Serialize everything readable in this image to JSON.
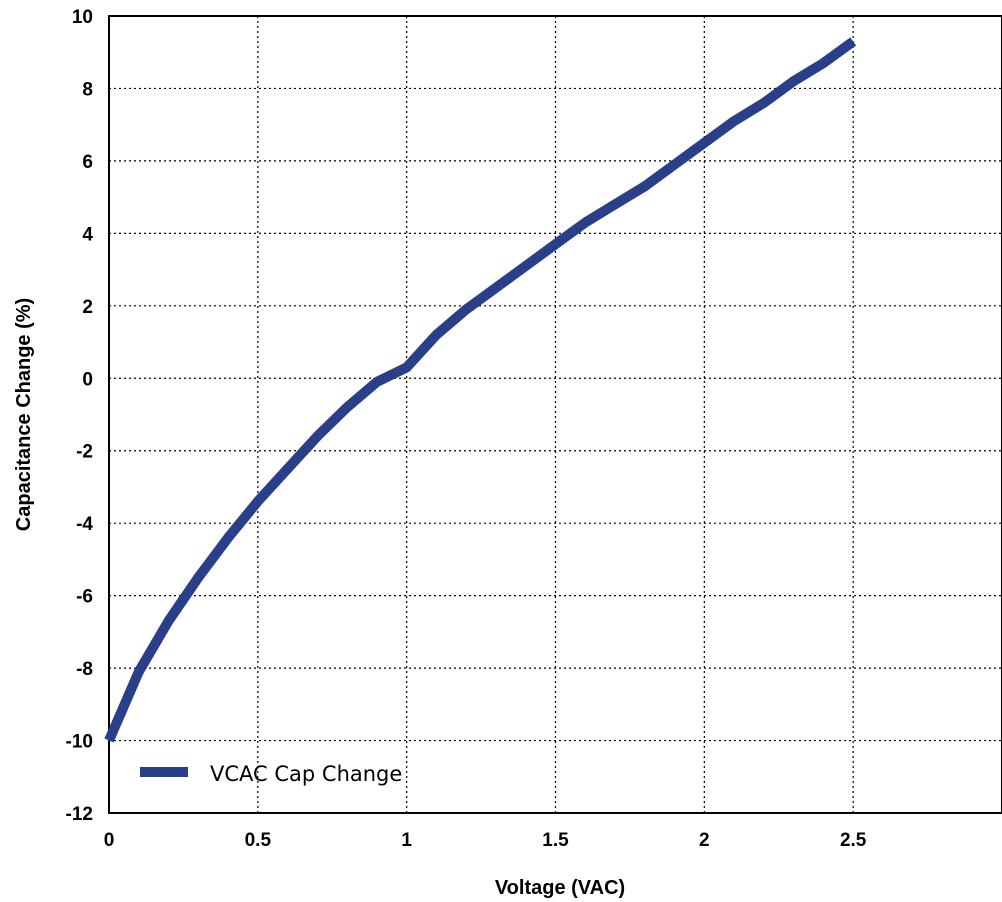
{
  "chart_data": {
    "type": "line",
    "title": "",
    "xlabel": "Voltage (VAC)",
    "ylabel": "Capacitance Change (%)",
    "xlim": [
      0,
      3
    ],
    "ylim": [
      -12,
      10
    ],
    "x_ticks": [
      0,
      0.5,
      1,
      1.5,
      2,
      2.5
    ],
    "x_tick_labels": [
      "0",
      "0.5",
      "1",
      "1.5",
      "2",
      "2.5"
    ],
    "y_ticks": [
      -12,
      -10,
      -8,
      -6,
      -4,
      -2,
      0,
      2,
      4,
      6,
      8,
      10
    ],
    "y_tick_labels": [
      "-12",
      "-10",
      "-8",
      "-6",
      "-4",
      "-2",
      "0",
      "2",
      "4",
      "6",
      "8",
      "10"
    ],
    "grid": true,
    "legend_position": "bottom-left",
    "series": [
      {
        "name": "VCAC Cap Change",
        "color": "#2a3f8a",
        "x": [
          0,
          0.1,
          0.2,
          0.3,
          0.4,
          0.5,
          0.6,
          0.7,
          0.8,
          0.9,
          1.0,
          1.1,
          1.2,
          1.3,
          1.4,
          1.5,
          1.6,
          1.7,
          1.8,
          1.9,
          2.0,
          2.1,
          2.2,
          2.3,
          2.4,
          2.5
        ],
        "y": [
          -10.0,
          -8.1,
          -6.7,
          -5.5,
          -4.4,
          -3.4,
          -2.5,
          -1.6,
          -0.8,
          -0.1,
          0.3,
          1.2,
          1.9,
          2.5,
          3.1,
          3.7,
          4.3,
          4.8,
          5.3,
          5.9,
          6.5,
          7.1,
          7.6,
          8.2,
          8.7,
          9.3
        ]
      }
    ]
  }
}
